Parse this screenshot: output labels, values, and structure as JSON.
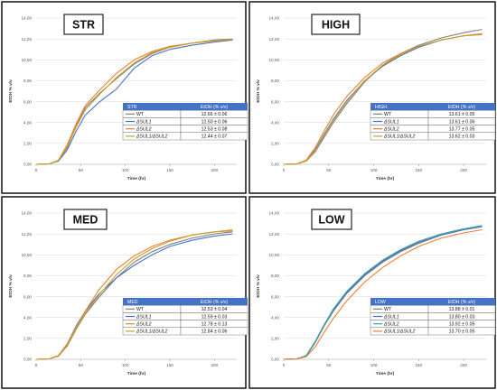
{
  "chart_data": [
    {
      "type": "line",
      "title": "STR",
      "xlabel": "Time (hr)",
      "ylabel": "EtOH % v/v",
      "xlim": [
        0,
        225
      ],
      "ylim": [
        0,
        14
      ],
      "xticks": [
        "0",
        "50",
        "100",
        "150",
        "200"
      ],
      "yticks": [
        "0,00",
        "2,00",
        "4,00",
        "6,00",
        "8,00",
        "10,00",
        "12,00",
        "14,00"
      ],
      "grid": true,
      "legend": {
        "placement": "bottom-right",
        "header": [
          "STR",
          "EtOH (% v/v)"
        ],
        "rows": [
          [
            "WT",
            "12.66 ± 0.06"
          ],
          [
            "ΔSUL1",
            "12.50 ± 0.06"
          ],
          [
            "ΔSUL2",
            "12.53 ± 0.08"
          ],
          [
            "ΔSUL1/ΔSUL2",
            "12.44 ± 0.07"
          ]
        ]
      },
      "series": [
        {
          "name": "WT",
          "color": "#7f7f7f",
          "x": [
            0,
            15,
            25,
            35,
            45,
            55,
            70,
            90,
            110,
            130,
            150,
            175,
            200,
            220
          ],
          "y": [
            0,
            0.05,
            0.35,
            1.6,
            3.7,
            5.4,
            6.7,
            8.2,
            9.6,
            10.6,
            11.2,
            11.6,
            11.9,
            12.0
          ]
        },
        {
          "name": "ΔSUL1",
          "color": "#4472c4",
          "x": [
            0,
            15,
            25,
            35,
            45,
            55,
            70,
            90,
            110,
            130,
            150,
            175,
            200,
            220
          ],
          "y": [
            0,
            0.05,
            0.3,
            1.4,
            3.2,
            4.7,
            5.9,
            7.2,
            9.2,
            10.4,
            11.0,
            11.4,
            11.7,
            11.9
          ]
        },
        {
          "name": "ΔSUL2",
          "color": "#ed7d31",
          "x": [
            0,
            15,
            25,
            35,
            45,
            55,
            70,
            90,
            110,
            130,
            150,
            175,
            200,
            220
          ],
          "y": [
            0,
            0.05,
            0.4,
            1.9,
            3.9,
            5.6,
            7.0,
            8.7,
            10.0,
            10.8,
            11.3,
            11.6,
            11.8,
            11.95
          ]
        },
        {
          "name": "ΔSUL1/ΔSUL2",
          "color": "#c9a227",
          "x": [
            0,
            15,
            25,
            35,
            45,
            55,
            70,
            90,
            110,
            130,
            150,
            175,
            200,
            220
          ],
          "y": [
            0,
            0.05,
            0.35,
            1.7,
            3.6,
            5.2,
            6.6,
            8.3,
            9.7,
            10.7,
            11.2,
            11.6,
            11.85,
            11.95
          ]
        }
      ]
    },
    {
      "type": "line",
      "title": "HIGH",
      "xlabel": "Time (hr)",
      "ylabel": "EtOH % v/v",
      "xlim": [
        0,
        225
      ],
      "ylim": [
        0,
        14
      ],
      "xticks": [
        "0",
        "50",
        "100",
        "150",
        "200"
      ],
      "yticks": [
        "0,00",
        "2,00",
        "4,00",
        "6,00",
        "8,00",
        "10,00",
        "12,00",
        "14,00"
      ],
      "grid": true,
      "legend": {
        "placement": "bottom-right",
        "header": [
          "HIGH",
          "EtOH (% v/v)"
        ],
        "rows": [
          [
            "WT",
            "13.61 ± 0.05"
          ],
          [
            "ΔSUL1",
            "13.61 ± 0.06"
          ],
          [
            "ΔSUL2",
            "13.77 ± 0.05"
          ],
          [
            "ΔSUL1/ΔSUL2",
            "13.62 ± 0.03"
          ]
        ]
      },
      "series": [
        {
          "name": "WT",
          "color": "#7f7f7f",
          "x": [
            0,
            15,
            25,
            35,
            45,
            55,
            70,
            90,
            110,
            130,
            150,
            175,
            200,
            220
          ],
          "y": [
            0,
            0.05,
            0.3,
            1.2,
            2.6,
            4.0,
            5.8,
            7.9,
            9.5,
            10.6,
            11.4,
            12.1,
            12.6,
            12.9
          ]
        },
        {
          "name": "ΔSUL1",
          "color": "#4472c4",
          "x": [
            0,
            15,
            25,
            35,
            45,
            55,
            70,
            90,
            110,
            130,
            150,
            175,
            200,
            220
          ],
          "y": [
            0,
            0.05,
            0.35,
            1.4,
            2.9,
            4.3,
            6.1,
            8.0,
            9.4,
            10.4,
            11.2,
            11.9,
            12.3,
            12.5
          ]
        },
        {
          "name": "ΔSUL2",
          "color": "#ed7d31",
          "x": [
            0,
            15,
            25,
            35,
            45,
            55,
            70,
            90,
            110,
            130,
            150,
            175,
            200,
            220
          ],
          "y": [
            0,
            0.05,
            0.4,
            1.6,
            3.2,
            4.7,
            6.5,
            8.3,
            9.7,
            10.6,
            11.3,
            11.9,
            12.3,
            12.5
          ]
        },
        {
          "name": "ΔSUL1/ΔSUL2",
          "color": "#c9a227",
          "x": [
            0,
            15,
            25,
            35,
            45,
            55,
            70,
            90,
            110,
            130,
            150,
            175,
            200,
            220
          ],
          "y": [
            0,
            0.05,
            0.3,
            1.3,
            2.8,
            4.2,
            6.0,
            8.0,
            9.5,
            10.5,
            11.3,
            11.9,
            12.3,
            12.4
          ]
        }
      ]
    },
    {
      "type": "line",
      "title": "MED",
      "xlabel": "Time (hr)",
      "ylabel": "EtOH % v/v",
      "xlim": [
        0,
        225
      ],
      "ylim": [
        0,
        14
      ],
      "xticks": [
        "0",
        "50",
        "100",
        "150",
        "200"
      ],
      "yticks": [
        "0,00",
        "2,00",
        "4,00",
        "6,00",
        "8,00",
        "10,00",
        "12,00",
        "14,00"
      ],
      "grid": true,
      "legend": {
        "placement": "bottom-right",
        "header": [
          "MED",
          "EtOH (% v/v)"
        ],
        "rows": [
          [
            "WT",
            "12.53 ± 0.04"
          ],
          [
            "ΔSUL1",
            "12.59 ± 0.03"
          ],
          [
            "ΔSUL2",
            "12.78 ± 0.13"
          ],
          [
            "ΔSUL1/ΔSUL2",
            "12.84 ± 0.06"
          ]
        ]
      },
      "series": [
        {
          "name": "WT",
          "color": "#7f7f7f",
          "x": [
            0,
            15,
            25,
            35,
            45,
            55,
            70,
            90,
            110,
            130,
            150,
            175,
            200,
            220
          ],
          "y": [
            0,
            0.05,
            0.3,
            1.3,
            2.9,
            4.3,
            5.9,
            7.8,
            9.3,
            10.3,
            11.0,
            11.6,
            12.0,
            12.2
          ]
        },
        {
          "name": "ΔSUL1",
          "color": "#4472c4",
          "x": [
            0,
            15,
            25,
            35,
            45,
            55,
            70,
            90,
            110,
            130,
            150,
            175,
            200,
            220
          ],
          "y": [
            0,
            0.05,
            0.35,
            1.5,
            3.2,
            4.6,
            6.2,
            7.8,
            9.0,
            10.0,
            10.8,
            11.4,
            11.8,
            12.0
          ]
        },
        {
          "name": "ΔSUL2",
          "color": "#ed7d31",
          "x": [
            0,
            15,
            25,
            35,
            45,
            55,
            70,
            90,
            110,
            130,
            150,
            175,
            200,
            220
          ],
          "y": [
            0,
            0.05,
            0.35,
            1.5,
            3.1,
            4.6,
            6.6,
            8.6,
            9.9,
            10.8,
            11.4,
            11.9,
            12.2,
            12.3
          ]
        },
        {
          "name": "ΔSUL1/ΔSUL2",
          "color": "#c9a227",
          "x": [
            0,
            15,
            25,
            35,
            45,
            55,
            70,
            90,
            110,
            130,
            150,
            175,
            200,
            220
          ],
          "y": [
            0,
            0.05,
            0.3,
            1.4,
            3.0,
            4.4,
            6.1,
            8.1,
            9.6,
            10.6,
            11.3,
            11.9,
            12.2,
            12.4
          ]
        }
      ]
    },
    {
      "type": "line",
      "title": "LOW",
      "xlabel": "Time (hr)",
      "ylabel": "EtOH % v/v",
      "xlim": [
        0,
        225
      ],
      "ylim": [
        0,
        14
      ],
      "xticks": [
        "0",
        "50",
        "100",
        "150",
        "200"
      ],
      "yticks": [
        "0,00",
        "2,00",
        "4,00",
        "6,00",
        "8,00",
        "10,00",
        "12,00",
        "14,00"
      ],
      "grid": true,
      "legend": {
        "placement": "bottom-right",
        "header": [
          "LOW",
          "EtOH (% v/v)"
        ],
        "rows": [
          [
            "WT",
            "13.88 ± 0.01"
          ],
          [
            "ΔSUL1",
            "13.80 ± 0.03"
          ],
          [
            "ΔSUL2",
            "13.92 ± 0.05"
          ],
          [
            "ΔSUL1/ΔSUL2",
            "13.70 ± 0.05"
          ]
        ]
      },
      "series": [
        {
          "name": "WT",
          "color": "#7f7f7f",
          "x": [
            0,
            15,
            25,
            35,
            45,
            55,
            70,
            90,
            110,
            130,
            150,
            175,
            200,
            220
          ],
          "y": [
            0,
            0.05,
            0.3,
            1.6,
            3.2,
            4.6,
            6.3,
            8.0,
            9.3,
            10.3,
            11.1,
            11.9,
            12.4,
            12.7
          ]
        },
        {
          "name": "ΔSUL1",
          "color": "#4472c4",
          "x": [
            0,
            15,
            25,
            35,
            45,
            55,
            70,
            90,
            110,
            130,
            150,
            175,
            200,
            220
          ],
          "y": [
            0,
            0.05,
            0.35,
            1.7,
            3.3,
            4.7,
            6.4,
            8.1,
            9.4,
            10.4,
            11.2,
            11.9,
            12.4,
            12.7
          ]
        },
        {
          "name": "ΔSUL2",
          "color": "#36a3a3",
          "x": [
            0,
            15,
            25,
            35,
            45,
            55,
            70,
            90,
            110,
            130,
            150,
            175,
            200,
            220
          ],
          "y": [
            0,
            0.05,
            0.35,
            1.7,
            3.3,
            4.8,
            6.5,
            8.2,
            9.5,
            10.5,
            11.3,
            12.0,
            12.5,
            12.8
          ]
        },
        {
          "name": "ΔSUL1/ΔSUL2",
          "color": "#ed7d31",
          "x": [
            0,
            15,
            25,
            35,
            45,
            55,
            70,
            90,
            110,
            130,
            150,
            175,
            200,
            220
          ],
          "y": [
            0,
            0.05,
            0.25,
            1.2,
            2.6,
            3.9,
            5.6,
            7.4,
            8.8,
            9.9,
            10.8,
            11.6,
            12.1,
            12.4
          ]
        }
      ]
    }
  ]
}
